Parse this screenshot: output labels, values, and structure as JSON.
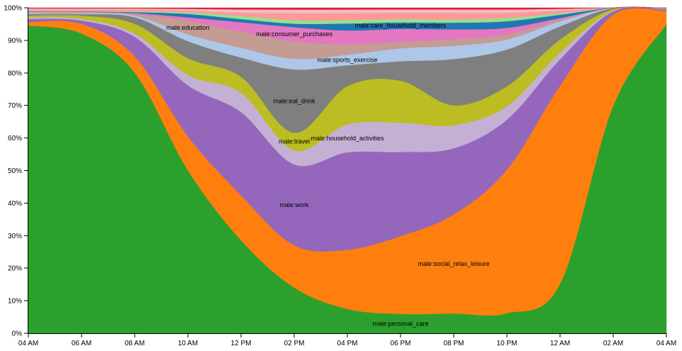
{
  "chart_data": {
    "type": "area",
    "stacked": "normalized",
    "x": [
      "04 AM",
      "06 AM",
      "08 AM",
      "10 AM",
      "12 PM",
      "02 PM",
      "04 PM",
      "06 PM",
      "08 PM",
      "10 PM",
      "12 AM",
      "02 AM",
      "04 AM"
    ],
    "y_ticks": [
      "0%",
      "10%",
      "20%",
      "30%",
      "40%",
      "50%",
      "60%",
      "70%",
      "80%",
      "90%",
      "100%"
    ],
    "ylim": [
      0,
      100
    ],
    "series": [
      {
        "name": "male:personal_care",
        "color": "#2ca02c",
        "values": [
          95,
          92,
          80,
          48,
          29,
          13,
          7,
          6,
          6,
          6,
          15,
          70,
          95
        ]
      },
      {
        "name": "male:social_relax_leisure",
        "color": "#ff7f0e",
        "values": [
          1,
          3,
          5,
          10,
          14,
          12,
          17,
          24,
          30,
          43,
          60,
          28,
          4
        ]
      },
      {
        "name": "male:work",
        "color": "#9467bd",
        "values": [
          1,
          1,
          6,
          15,
          26,
          23,
          28,
          26,
          20,
          15,
          8,
          1,
          0.5
        ]
      },
      {
        "name": "male:household_activities",
        "color": "#c5b0d5",
        "values": [
          0.5,
          0.5,
          1,
          3,
          6,
          4,
          8,
          9,
          7,
          4,
          2,
          0.2,
          0.1
        ]
      },
      {
        "name": "male:travel",
        "color": "#bcbd22",
        "values": [
          0.5,
          1,
          3,
          5,
          5,
          5,
          11,
          13,
          6,
          6,
          4,
          0.5,
          0.1
        ]
      },
      {
        "name": "male:eat_drink",
        "color": "#7f7f7f",
        "values": [
          0.5,
          0.5,
          2,
          5,
          6,
          18,
          6,
          6,
          14,
          11,
          4,
          0.3,
          0.1
        ]
      },
      {
        "name": "male:sports_exercise",
        "color": "#aec7e8",
        "values": [
          0.3,
          0.3,
          0.5,
          2,
          3,
          3,
          3,
          4,
          4,
          3,
          1.5,
          0.1,
          0.1
        ]
      },
      {
        "name": "male:education",
        "color": "#c49c94",
        "values": [
          0.3,
          0.3,
          0.5,
          4,
          5,
          5,
          3,
          2,
          2,
          1.5,
          0.5,
          0,
          0
        ]
      },
      {
        "name": "male:consumer_purchases",
        "color": "#e377c2",
        "values": [
          0.1,
          0.1,
          0.3,
          1,
          3,
          4,
          4,
          4,
          3,
          2,
          0.5,
          0,
          0
        ]
      },
      {
        "name": "male:care_household_members",
        "color": "#1f77b4",
        "values": [
          0.1,
          0.1,
          0.3,
          1,
          1,
          1,
          2,
          2,
          2,
          2,
          1,
          0,
          0
        ]
      },
      {
        "name": "",
        "color": "#98df8a",
        "values": [
          0.1,
          0.1,
          0.3,
          0.5,
          1,
          1,
          1,
          1,
          1,
          1,
          0.5,
          0,
          0
        ]
      },
      {
        "name": "",
        "color": "#ff9896",
        "values": [
          0.5,
          0.5,
          0.5,
          0.5,
          1,
          2,
          2,
          2,
          2,
          1.5,
          0.8,
          0,
          0.1
        ]
      },
      {
        "name": "",
        "color": "#f7b6d2",
        "values": [
          0.3,
          0.3,
          0.3,
          0.5,
          1,
          1,
          1,
          1,
          1,
          1,
          0.5,
          0,
          0
        ]
      },
      {
        "name": "",
        "color": "#d62728",
        "values": [
          0.2,
          0.2,
          0.2,
          0.3,
          0.5,
          0.5,
          0.5,
          0.5,
          0.5,
          0.5,
          0.3,
          0,
          0
        ]
      }
    ],
    "labels": [
      {
        "text": "male:personal_care",
        "series": 0,
        "at": "06 PM"
      },
      {
        "text": "male:social_relax_leisure",
        "series": 1,
        "at": "08 PM"
      },
      {
        "text": "male:work",
        "series": 2,
        "at": "02 PM"
      },
      {
        "text": "male:household_activities",
        "series": 3,
        "at": "04 PM"
      },
      {
        "text": "male:travel",
        "series": 4,
        "at": "02 PM"
      },
      {
        "text": "male:eat_drink",
        "series": 5,
        "at": "02 PM"
      },
      {
        "text": "male:sports_exercise",
        "series": 6,
        "at": "04 PM"
      },
      {
        "text": "male:education",
        "series": 7,
        "at": "10 AM"
      },
      {
        "text": "male:consumer_purchases",
        "series": 8,
        "at": "02 PM"
      },
      {
        "text": "male:care_household_members",
        "series": 9,
        "at": "06 PM"
      }
    ],
    "grid": false,
    "legend": "none"
  }
}
